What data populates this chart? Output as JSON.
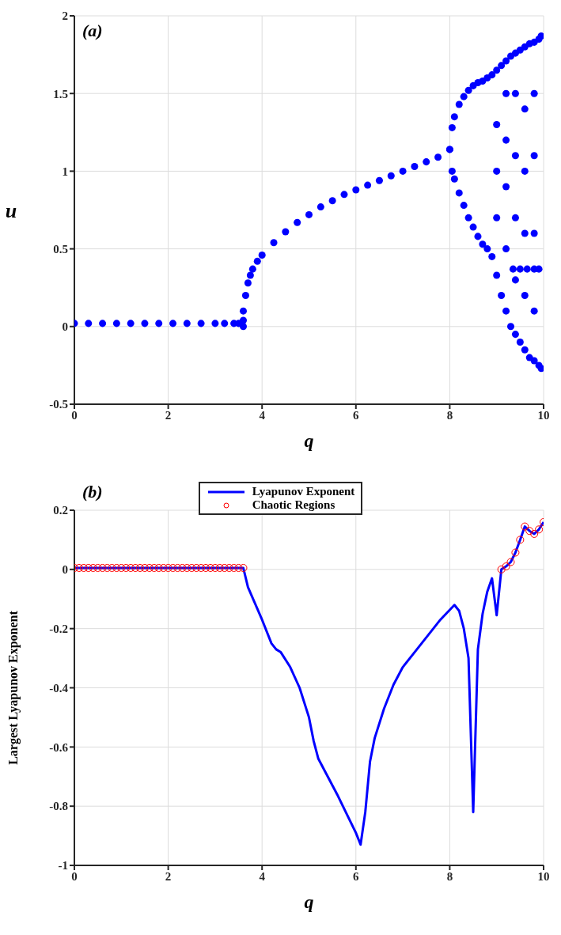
{
  "chart_data": [
    {
      "type": "scatter",
      "annotations": [
        "(a)"
      ],
      "xlabel": "q",
      "ylabel": "u",
      "xlim": [
        0,
        10
      ],
      "xticks": [
        0,
        2,
        4,
        6,
        8,
        10
      ],
      "ylim": [
        -0.5,
        2
      ],
      "yticks": [
        -0.5,
        0,
        0.5,
        1,
        1.5,
        2
      ],
      "grid": true,
      "legend": false,
      "series": [
        {
          "color": "#0000ff",
          "marker": "circle",
          "x": [
            0,
            0.3,
            0.6,
            0.9,
            1.2,
            1.5,
            1.8,
            2.1,
            2.4,
            2.7,
            3.0,
            3.2,
            3.4,
            3.5,
            3.6,
            3.6,
            3.6,
            3.65,
            3.7,
            3.75,
            3.8,
            3.9,
            4.0,
            4.25,
            4.5,
            4.75,
            5.0,
            5.25,
            5.5,
            5.75,
            6.0,
            6.25,
            6.5,
            6.75,
            7.0,
            7.25,
            7.5,
            7.75,
            8.0,
            8.0,
            8.05,
            8.1,
            8.2,
            8.3,
            8.4,
            8.5,
            8.6,
            8.7,
            8.8,
            8.05,
            8.1,
            8.2,
            8.3,
            8.4,
            8.5,
            8.6,
            8.7,
            8.8,
            8.9,
            9.0,
            9.1,
            9.2,
            9.3,
            9.4,
            9.5,
            9.6,
            9.7,
            9.8,
            9.9,
            8.9,
            9.0,
            9.1,
            9.2,
            9.3,
            9.4,
            9.5,
            9.6,
            9.7,
            9.8,
            9.9,
            9.0,
            9.0,
            9.0,
            9.2,
            9.2,
            9.2,
            9.2,
            9.4,
            9.4,
            9.4,
            9.4,
            9.6,
            9.6,
            9.6,
            9.6,
            9.8,
            9.8,
            9.8,
            9.8,
            9.35,
            9.5,
            9.65,
            9.8,
            9.9,
            9.95,
            9.95
          ],
          "values": [
            0.02,
            0.02,
            0.02,
            0.02,
            0.02,
            0.02,
            0.02,
            0.02,
            0.02,
            0.02,
            0.02,
            0.02,
            0.02,
            0.02,
            0.0,
            0.04,
            0.1,
            0.2,
            0.28,
            0.33,
            0.37,
            0.42,
            0.46,
            0.54,
            0.61,
            0.67,
            0.72,
            0.77,
            0.81,
            0.85,
            0.88,
            0.91,
            0.94,
            0.97,
            1.0,
            1.03,
            1.06,
            1.09,
            1.14,
            1.14,
            1.28,
            1.35,
            1.43,
            1.48,
            1.52,
            1.55,
            1.57,
            1.58,
            1.6,
            1.0,
            0.95,
            0.86,
            0.78,
            0.7,
            0.64,
            0.58,
            0.53,
            0.5,
            1.62,
            1.65,
            1.68,
            1.71,
            1.74,
            1.76,
            1.78,
            1.8,
            1.82,
            1.83,
            1.85,
            0.45,
            0.33,
            0.2,
            0.1,
            0.0,
            -0.05,
            -0.1,
            -0.15,
            -0.2,
            -0.22,
            -0.25,
            0.7,
            1.0,
            1.3,
            0.5,
            0.9,
            1.2,
            1.5,
            0.3,
            0.7,
            1.1,
            1.5,
            0.2,
            0.6,
            1.0,
            1.4,
            0.1,
            0.6,
            1.1,
            1.5,
            0.37,
            0.37,
            0.37,
            0.37,
            0.37,
            1.87,
            -0.27
          ]
        }
      ]
    },
    {
      "type": "line",
      "annotations": [
        "(b)"
      ],
      "xlabel": "q",
      "ylabel": "Largest Lyapunov Exponent",
      "xlim": [
        0,
        10
      ],
      "xticks": [
        0,
        2,
        4,
        6,
        8,
        10
      ],
      "ylim": [
        -1,
        0.2
      ],
      "yticks": [
        -1,
        -0.8,
        -0.6,
        -0.4,
        -0.2,
        0,
        0.2
      ],
      "grid": true,
      "legend": "top",
      "series": [
        {
          "name": "Lyapunov Exponent",
          "color": "#0000ff",
          "marker": "none",
          "x": [
            0,
            3.6,
            3.7,
            4.0,
            4.2,
            4.3,
            4.4,
            4.6,
            4.8,
            5.0,
            5.1,
            5.2,
            5.6,
            6.0,
            6.1,
            6.2,
            6.3,
            6.4,
            6.6,
            6.8,
            7.0,
            7.4,
            7.8,
            8.1,
            8.2,
            8.3,
            8.4,
            8.5,
            8.6,
            8.7,
            8.8,
            8.9,
            9.0,
            9.1,
            9.2,
            9.3,
            9.4,
            9.5,
            9.6,
            9.7,
            9.8,
            9.9,
            10
          ],
          "values": [
            0.005,
            0.005,
            -0.06,
            -0.17,
            -0.25,
            -0.27,
            -0.28,
            -0.33,
            -0.4,
            -0.5,
            -0.58,
            -0.64,
            -0.76,
            -0.89,
            -0.93,
            -0.82,
            -0.65,
            -0.57,
            -0.47,
            -0.39,
            -0.33,
            -0.25,
            -0.17,
            -0.12,
            -0.14,
            -0.2,
            -0.3,
            -0.82,
            -0.27,
            -0.15,
            -0.075,
            -0.03,
            -0.155,
            0,
            0.01,
            0.025,
            0.057,
            0.1,
            0.145,
            0.13,
            0.12,
            0.135,
            0.16
          ]
        },
        {
          "name": "Chaotic Regions",
          "type": "scatter",
          "color": "#ff0000",
          "marker": "circle",
          "x": [
            0,
            0.1,
            0.2,
            0.3,
            0.4,
            0.5,
            0.6,
            0.7,
            0.8,
            0.9,
            1.0,
            1.1,
            1.2,
            1.3,
            1.4,
            1.5,
            1.6,
            1.7,
            1.8,
            1.9,
            2.0,
            2.1,
            2.2,
            2.3,
            2.4,
            2.5,
            2.6,
            2.7,
            2.8,
            2.9,
            3.0,
            3.1,
            3.2,
            3.3,
            3.4,
            3.5,
            3.6,
            9.1,
            9.2,
            9.3,
            9.4,
            9.5,
            9.6,
            9.7,
            9.8,
            9.9,
            10
          ],
          "values": [
            0.005,
            0.005,
            0.005,
            0.005,
            0.005,
            0.005,
            0.005,
            0.005,
            0.005,
            0.005,
            0.005,
            0.005,
            0.005,
            0.005,
            0.005,
            0.005,
            0.005,
            0.005,
            0.005,
            0.005,
            0.005,
            0.005,
            0.005,
            0.005,
            0.005,
            0.005,
            0.005,
            0.005,
            0.005,
            0.005,
            0.005,
            0.005,
            0.005,
            0.005,
            0.005,
            0.005,
            0.005,
            0,
            0.01,
            0.025,
            0.057,
            0.1,
            0.145,
            0.13,
            0.12,
            0.135,
            0.16
          ]
        }
      ]
    }
  ]
}
